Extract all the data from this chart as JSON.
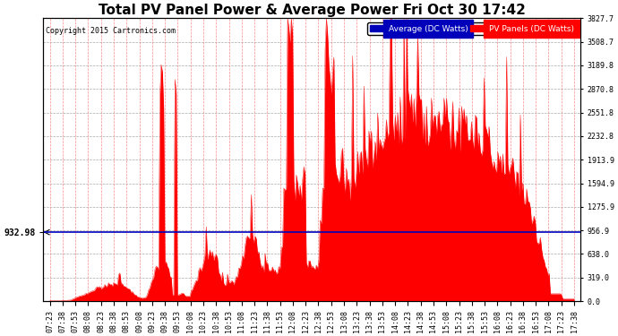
{
  "title": "Total PV Panel Power & Average Power Fri Oct 30 17:42",
  "copyright": "Copyright 2015 Cartronics.com",
  "average_value": 932.98,
  "y_max": 3827.7,
  "y_ticks_right": [
    0.0,
    319.0,
    638.0,
    956.9,
    1275.9,
    1594.9,
    1913.9,
    2232.8,
    2551.8,
    2870.8,
    3189.8,
    3508.7,
    3827.7
  ],
  "legend_avg_label": "Average (DC Watts)",
  "legend_pv_label": "PV Panels (DC Watts)",
  "avg_line_color": "#0000bb",
  "pv_fill_color": "#ff0000",
  "pv_line_color": "#ff0000",
  "background_color": "#ffffff",
  "grid_color_h": "#aaaaaa",
  "grid_color_v": "#ff8888",
  "title_fontsize": 11,
  "tick_fontsize": 6.0,
  "time_labels": [
    "07:23",
    "07:38",
    "07:53",
    "08:08",
    "08:23",
    "08:38",
    "08:53",
    "09:08",
    "09:23",
    "09:38",
    "09:53",
    "10:08",
    "10:23",
    "10:38",
    "10:53",
    "11:08",
    "11:23",
    "11:38",
    "11:53",
    "12:08",
    "12:23",
    "12:38",
    "12:53",
    "13:08",
    "13:23",
    "13:38",
    "13:53",
    "14:08",
    "14:23",
    "14:38",
    "14:53",
    "15:08",
    "15:23",
    "15:38",
    "15:53",
    "16:08",
    "16:23",
    "16:38",
    "16:53",
    "17:08",
    "17:23",
    "17:38"
  ]
}
